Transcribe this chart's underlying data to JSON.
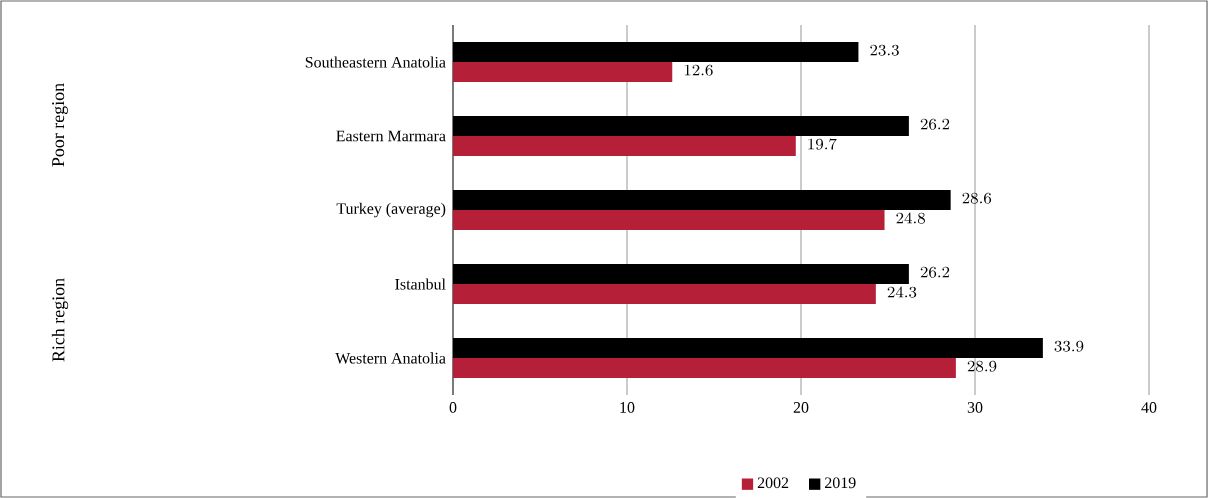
{
  "chart_data": {
    "type": "bar",
    "orientation": "horizontal",
    "categories": [
      "Southeastern Anatolia",
      "Eastern Marmara",
      "Turkey (average)",
      "Istanbul",
      "Western Anatolia"
    ],
    "series": [
      {
        "name": "2002",
        "color": "#b51f38",
        "values": [
          12.6,
          19.7,
          24.8,
          24.3,
          28.9
        ]
      },
      {
        "name": "2019",
        "color": "#000000",
        "values": [
          23.3,
          26.2,
          28.6,
          26.2,
          33.9
        ]
      }
    ],
    "xlim": [
      0,
      40
    ],
    "xticks": [
      0,
      10,
      20,
      30,
      40
    ],
    "grid": "x",
    "legend": "bottom",
    "data_labels": true,
    "annotations": [
      "Poor region",
      "Rich region"
    ]
  }
}
